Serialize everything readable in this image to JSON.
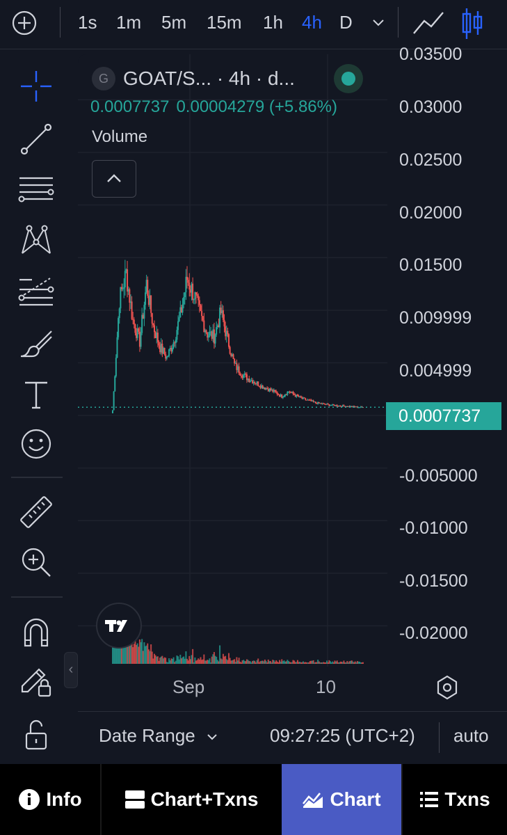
{
  "timeframes": [
    {
      "label": "1s",
      "active": false
    },
    {
      "label": "1m",
      "active": false
    },
    {
      "label": "5m",
      "active": false
    },
    {
      "label": "15m",
      "active": false
    },
    {
      "label": "1h",
      "active": false
    },
    {
      "label": "4h",
      "active": true
    },
    {
      "label": "D",
      "active": false
    }
  ],
  "legend": {
    "badge": "G",
    "title": "GOAT/S... · 4h · d...",
    "values": [
      "0.0007737",
      "0.00004279 (+5.86%)"
    ],
    "volume_label": "Volume"
  },
  "y_axis_labels": [
    "0.03500",
    "0.03000",
    "0.02500",
    "0.02000",
    "0.01500",
    "0.009999",
    "0.004999",
    "-0.005000",
    "-0.01000",
    "-0.01500",
    "-0.02000"
  ],
  "current_price": "0.0007737",
  "x_axis_labels": [
    "Sep",
    "10"
  ],
  "bottom": {
    "date_range": "Date Range",
    "clock": "09:27:25 (UTC+2)",
    "scale_mode": "auto"
  },
  "tabs": [
    {
      "label": "Info",
      "icon": "info-icon",
      "active": false
    },
    {
      "label": "Chart+Txns",
      "icon": "split-view-icon",
      "active": false
    },
    {
      "label": "Chart",
      "icon": "area-chart-icon",
      "active": true
    },
    {
      "label": "Txns",
      "icon": "list-icon",
      "active": false
    }
  ],
  "colors": {
    "up": "#26a69a",
    "down": "#ef5350",
    "accent": "#2962ff",
    "tab_active": "#4a5bc4",
    "background": "#131722"
  },
  "chart_data": {
    "type": "candlestick",
    "series": [
      {
        "values": [
          0.0005,
          0.011,
          0.0135,
          0.009,
          0.007,
          0.0125,
          0.0085,
          0.0065,
          0.0055,
          0.007,
          0.0095,
          0.013,
          0.0115,
          0.0095,
          0.0078,
          0.0075,
          0.0098,
          0.0072,
          0.0048,
          0.004,
          0.0035,
          0.0032,
          0.0028,
          0.0025,
          0.0022,
          0.0018,
          0.0023,
          0.0019,
          0.0016,
          0.0014,
          0.0012,
          0.0011,
          0.001,
          0.00095,
          0.0009,
          0.00085,
          0.0008,
          0.0007737
        ]
      }
    ],
    "ylim": [
      -0.022,
      0.035
    ],
    "y_ticks": [
      -0.02,
      -0.015,
      -0.01,
      -0.005,
      0.0,
      0.004999,
      0.009999,
      0.015,
      0.02,
      0.025,
      0.03,
      0.035
    ],
    "x_ticks": [
      "Sep",
      "10"
    ],
    "volume_shown": true
  }
}
